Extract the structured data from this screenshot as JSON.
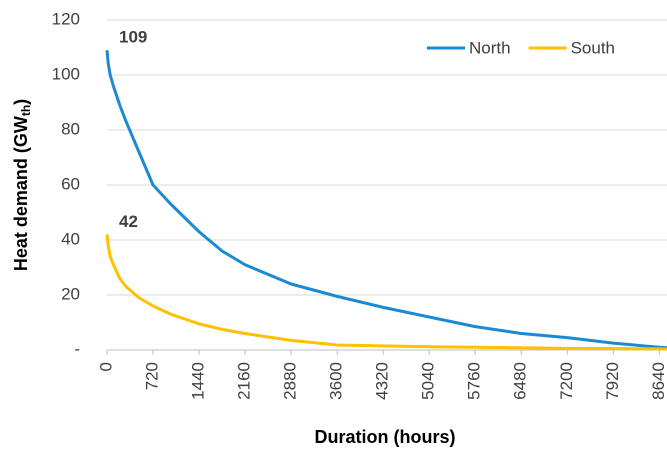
{
  "chart_data": {
    "type": "line",
    "x_label": "Duration (hours)",
    "y_label": "Heat demand (GW",
    "y_label_sub": "th",
    "y_label_end": ")",
    "x": [
      0,
      20,
      50,
      100,
      200,
      300,
      500,
      720,
      1000,
      1440,
      1800,
      2160,
      2880,
      3600,
      4320,
      5040,
      5760,
      6480,
      7200,
      7920,
      8640,
      8760
    ],
    "series": [
      {
        "name": "North",
        "color": "#1b8ad3",
        "values": [
          109,
          104,
          100,
          96,
          89,
          83,
          72,
          60,
          53,
          43,
          36,
          31,
          24,
          19.5,
          15.5,
          12,
          8.5,
          6,
          4.5,
          2.5,
          1,
          0.8
        ]
      },
      {
        "name": "South",
        "color": "#ffc000",
        "values": [
          42,
          38,
          34,
          31,
          26,
          23,
          19,
          16,
          13,
          9.5,
          7.5,
          6,
          3.5,
          1.8,
          1.5,
          1.2,
          1,
          0.8,
          0.6,
          0.5,
          0.4,
          0.3
        ]
      }
    ],
    "data_labels": "first",
    "xlim": [
      0,
      8760
    ],
    "xticks": [
      0,
      720,
      1440,
      2160,
      2880,
      3600,
      4320,
      5040,
      5760,
      6480,
      7200,
      7920,
      8640
    ],
    "ylim": [
      0,
      120
    ],
    "yticks": [
      {
        "value": 0,
        "label": "-"
      },
      20,
      40,
      60,
      80,
      100,
      120
    ],
    "grid": true,
    "legend": "top-right"
  }
}
